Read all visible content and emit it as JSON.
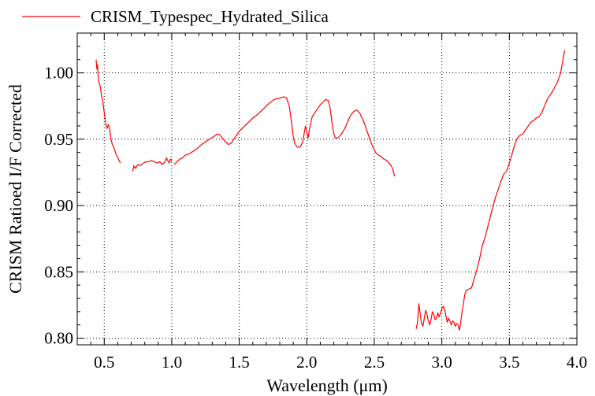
{
  "chart_data": {
    "type": "line",
    "xlabel": "Wavelength (μm)",
    "ylabel": "CRISM Ratioed I/F Corrected",
    "xlim": [
      0.3,
      4.0
    ],
    "ylim": [
      0.795,
      1.03
    ],
    "xticks": [
      0.5,
      1.0,
      1.5,
      2.0,
      2.5,
      3.0,
      3.5,
      4.0
    ],
    "xtick_labels": [
      "0.5",
      "1.0",
      "1.5",
      "2.0",
      "2.5",
      "3.0",
      "3.5",
      "4.0"
    ],
    "yticks": [
      0.8,
      0.85,
      0.9,
      0.95,
      1.0
    ],
    "ytick_labels": [
      "0.80",
      "0.85",
      "0.90",
      "0.95",
      "1.00"
    ],
    "grid": true,
    "legend_position": "top-left",
    "series": [
      {
        "name": "CRISM_Typespec_Hydrated_Silica",
        "color": "#ff0000",
        "segments": [
          [
            [
              0.44,
              1.01
            ],
            [
              0.445,
              1.003
            ],
            [
              0.45,
              1.006
            ],
            [
              0.455,
              0.998
            ],
            [
              0.46,
              0.993
            ],
            [
              0.47,
              0.99
            ],
            [
              0.48,
              0.983
            ],
            [
              0.49,
              0.978
            ],
            [
              0.5,
              0.97
            ],
            [
              0.51,
              0.962
            ],
            [
              0.52,
              0.958
            ],
            [
              0.53,
              0.961
            ],
            [
              0.54,
              0.958
            ],
            [
              0.55,
              0.95
            ],
            [
              0.56,
              0.946
            ],
            [
              0.57,
              0.944
            ],
            [
              0.58,
              0.941
            ],
            [
              0.59,
              0.938
            ],
            [
              0.6,
              0.936
            ],
            [
              0.61,
              0.934
            ],
            [
              0.62,
              0.932
            ]
          ],
          [
            [
              0.71,
              0.926
            ],
            [
              0.72,
              0.93
            ],
            [
              0.73,
              0.928
            ],
            [
              0.75,
              0.931
            ],
            [
              0.77,
              0.93
            ],
            [
              0.79,
              0.932
            ],
            [
              0.81,
              0.933
            ],
            [
              0.83,
              0.933
            ],
            [
              0.85,
              0.934
            ],
            [
              0.87,
              0.933
            ],
            [
              0.89,
              0.932
            ],
            [
              0.91,
              0.933
            ],
            [
              0.93,
              0.931
            ],
            [
              0.95,
              0.933
            ],
            [
              0.96,
              0.936
            ],
            [
              0.97,
              0.934
            ],
            [
              0.98,
              0.932
            ],
            [
              0.99,
              0.935
            ],
            [
              1.0,
              0.933
            ]
          ],
          [
            [
              1.02,
              0.931
            ],
            [
              1.04,
              0.933
            ],
            [
              1.06,
              0.935
            ],
            [
              1.08,
              0.936
            ],
            [
              1.1,
              0.938
            ],
            [
              1.13,
              0.939
            ],
            [
              1.16,
              0.941
            ],
            [
              1.19,
              0.943
            ],
            [
              1.22,
              0.946
            ],
            [
              1.25,
              0.948
            ],
            [
              1.28,
              0.95
            ],
            [
              1.31,
              0.952
            ],
            [
              1.34,
              0.954
            ],
            [
              1.36,
              0.953
            ],
            [
              1.38,
              0.95
            ],
            [
              1.4,
              0.948
            ],
            [
              1.42,
              0.946
            ],
            [
              1.44,
              0.947
            ],
            [
              1.46,
              0.95
            ],
            [
              1.48,
              0.953
            ],
            [
              1.5,
              0.956
            ],
            [
              1.53,
              0.959
            ],
            [
              1.56,
              0.962
            ],
            [
              1.6,
              0.966
            ],
            [
              1.64,
              0.969
            ],
            [
              1.68,
              0.973
            ],
            [
              1.72,
              0.977
            ],
            [
              1.76,
              0.98
            ],
            [
              1.8,
              0.981
            ],
            [
              1.83,
              0.982
            ],
            [
              1.85,
              0.981
            ],
            [
              1.87,
              0.975
            ],
            [
              1.88,
              0.968
            ],
            [
              1.89,
              0.96
            ],
            [
              1.9,
              0.952
            ],
            [
              1.91,
              0.947
            ],
            [
              1.93,
              0.944
            ],
            [
              1.95,
              0.944
            ],
            [
              1.97,
              0.948
            ],
            [
              1.98,
              0.954
            ],
            [
              1.99,
              0.96
            ],
            [
              2.0,
              0.955
            ],
            [
              2.01,
              0.951
            ],
            [
              2.02,
              0.958
            ],
            [
              2.04,
              0.967
            ],
            [
              2.06,
              0.97
            ],
            [
              2.08,
              0.973
            ],
            [
              2.1,
              0.976
            ],
            [
              2.12,
              0.978
            ],
            [
              2.14,
              0.98
            ],
            [
              2.16,
              0.979
            ],
            [
              2.17,
              0.975
            ],
            [
              2.18,
              0.968
            ],
            [
              2.19,
              0.96
            ],
            [
              2.2,
              0.954
            ],
            [
              2.21,
              0.951
            ],
            [
              2.23,
              0.951
            ],
            [
              2.25,
              0.953
            ],
            [
              2.27,
              0.956
            ],
            [
              2.29,
              0.96
            ],
            [
              2.31,
              0.965
            ],
            [
              2.33,
              0.969
            ],
            [
              2.35,
              0.971
            ],
            [
              2.37,
              0.972
            ],
            [
              2.39,
              0.97
            ],
            [
              2.41,
              0.966
            ],
            [
              2.43,
              0.961
            ],
            [
              2.45,
              0.955
            ],
            [
              2.47,
              0.949
            ],
            [
              2.49,
              0.944
            ],
            [
              2.51,
              0.94
            ],
            [
              2.53,
              0.938
            ],
            [
              2.55,
              0.937
            ],
            [
              2.57,
              0.935
            ],
            [
              2.59,
              0.934
            ],
            [
              2.61,
              0.932
            ],
            [
              2.63,
              0.929
            ],
            [
              2.64,
              0.926
            ],
            [
              2.65,
              0.922
            ]
          ],
          [
            [
              2.81,
              0.807
            ],
            [
              2.82,
              0.812
            ],
            [
              2.83,
              0.826
            ],
            [
              2.84,
              0.818
            ],
            [
              2.85,
              0.811
            ],
            [
              2.86,
              0.809
            ],
            [
              2.87,
              0.815
            ],
            [
              2.88,
              0.821
            ],
            [
              2.89,
              0.818
            ],
            [
              2.9,
              0.813
            ],
            [
              2.91,
              0.81
            ],
            [
              2.92,
              0.814
            ],
            [
              2.93,
              0.82
            ],
            [
              2.94,
              0.818
            ],
            [
              2.95,
              0.814
            ],
            [
              2.96,
              0.815
            ],
            [
              2.97,
              0.819
            ],
            [
              2.98,
              0.816
            ],
            [
              2.99,
              0.819
            ],
            [
              3.0,
              0.822
            ],
            [
              3.01,
              0.824
            ],
            [
              3.02,
              0.822
            ],
            [
              3.03,
              0.817
            ],
            [
              3.04,
              0.812
            ],
            [
              3.05,
              0.815
            ],
            [
              3.06,
              0.813
            ],
            [
              3.07,
              0.81
            ],
            [
              3.08,
              0.813
            ],
            [
              3.09,
              0.812
            ],
            [
              3.1,
              0.809
            ],
            [
              3.11,
              0.811
            ],
            [
              3.12,
              0.81
            ],
            [
              3.13,
              0.806
            ],
            [
              3.14,
              0.812
            ],
            [
              3.15,
              0.82
            ],
            [
              3.16,
              0.826
            ],
            [
              3.17,
              0.833
            ],
            [
              3.18,
              0.836
            ],
            [
              3.2,
              0.837
            ],
            [
              3.22,
              0.838
            ],
            [
              3.24,
              0.845
            ],
            [
              3.26,
              0.852
            ],
            [
              3.28,
              0.86
            ],
            [
              3.3,
              0.87
            ],
            [
              3.32,
              0.876
            ],
            [
              3.34,
              0.884
            ],
            [
              3.36,
              0.892
            ],
            [
              3.38,
              0.9
            ],
            [
              3.4,
              0.907
            ],
            [
              3.42,
              0.913
            ],
            [
              3.44,
              0.919
            ],
            [
              3.46,
              0.924
            ],
            [
              3.48,
              0.926
            ],
            [
              3.5,
              0.932
            ],
            [
              3.52,
              0.939
            ],
            [
              3.54,
              0.946
            ],
            [
              3.56,
              0.951
            ],
            [
              3.58,
              0.953
            ],
            [
              3.6,
              0.954
            ],
            [
              3.62,
              0.957
            ],
            [
              3.64,
              0.96
            ],
            [
              3.66,
              0.963
            ],
            [
              3.68,
              0.964
            ],
            [
              3.7,
              0.966
            ],
            [
              3.72,
              0.967
            ],
            [
              3.74,
              0.97
            ],
            [
              3.76,
              0.975
            ],
            [
              3.78,
              0.98
            ],
            [
              3.8,
              0.983
            ],
            [
              3.82,
              0.986
            ],
            [
              3.84,
              0.99
            ],
            [
              3.86,
              0.994
            ],
            [
              3.88,
              1.0
            ],
            [
              3.9,
              1.012
            ],
            [
              3.91,
              1.017
            ]
          ]
        ]
      }
    ]
  }
}
